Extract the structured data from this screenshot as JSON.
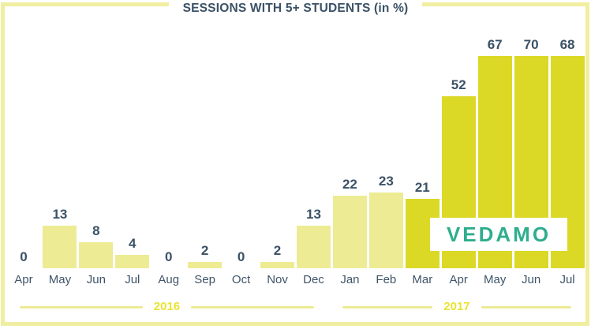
{
  "watermark": {
    "text": "VEDAMO"
  },
  "colors": {
    "light_bar": "#EDEB94",
    "dark_bar": "#DBD926",
    "frame_border": "#F0EEA0",
    "label_text": "#3B5166",
    "month_text": "#3F5468",
    "year_text": "#E8E434",
    "year_line": "#EDEB94",
    "logo_teal": "#2EAE8D",
    "background": "#FFFFFF"
  },
  "chart_data": {
    "type": "bar",
    "title": "SESSIONS WITH 5+ STUDENTS (in %)",
    "categories": [
      "Apr",
      "May",
      "Jun",
      "Jul",
      "Aug",
      "Sep",
      "Oct",
      "Nov",
      "Dec",
      "Jan",
      "Feb",
      "Mar",
      "Apr",
      "May",
      "Jun",
      "Jul"
    ],
    "values": [
      0,
      13,
      8,
      4,
      0,
      2,
      0,
      2,
      13,
      22,
      23,
      21,
      52,
      67,
      70,
      68
    ],
    "unit": "%",
    "xlabel": "",
    "ylabel": "",
    "ylim": [
      0,
      70
    ],
    "grid": false,
    "data_labels": true,
    "legend": "none",
    "bar_style": [
      "light",
      "light",
      "light",
      "light",
      "light",
      "light",
      "light",
      "light",
      "light",
      "light",
      "light",
      "dark",
      "dark",
      "dark",
      "dark",
      "dark"
    ],
    "year_groups": [
      {
        "label": "2016",
        "start_index": 0,
        "span": 9
      },
      {
        "label": "2017",
        "start_index": 9,
        "span": 7
      }
    ]
  }
}
